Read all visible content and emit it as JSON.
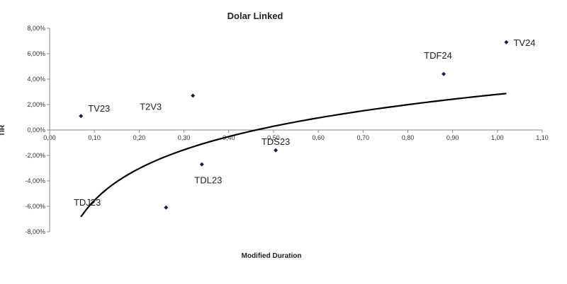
{
  "chart_data": {
    "type": "scatter",
    "title": "Dolar Linked",
    "xlabel": "Modified Duration",
    "ylabel": "TIR",
    "xlim": [
      0,
      1.1
    ],
    "ylim": [
      -0.08,
      0.08
    ],
    "x_ticks": [
      "0,00",
      "0,10",
      "0,20",
      "0,30",
      "0,40",
      "0,50",
      "0,60",
      "0,70",
      "0,80",
      "0,90",
      "1,00",
      "1,10"
    ],
    "y_ticks": [
      "8,00%",
      "6,00%",
      "4,00%",
      "2,00%",
      "0,00%",
      "-2,00%",
      "-4,00%",
      "-6,00%",
      "-8,00%"
    ],
    "grid": false,
    "points": [
      {
        "label": "TV23",
        "x": 0.07,
        "y": 0.011
      },
      {
        "label": "T2V3",
        "x": 0.32,
        "y": 0.027
      },
      {
        "label": "TDJ23",
        "x": 0.26,
        "y": -0.061
      },
      {
        "label": "TDL23",
        "x": 0.34,
        "y": -0.027
      },
      {
        "label": "TDS23",
        "x": 0.505,
        "y": -0.016
      },
      {
        "label": "TDF24",
        "x": 0.88,
        "y": 0.044
      },
      {
        "label": "TV24",
        "x": 1.02,
        "y": 0.069
      }
    ],
    "trendline": {
      "type": "log",
      "a": 0.028,
      "b": 0.0362,
      "x_range": [
        0.07,
        1.02
      ]
    },
    "marker_color": "#1a1a4a",
    "line_color": "#000000"
  }
}
